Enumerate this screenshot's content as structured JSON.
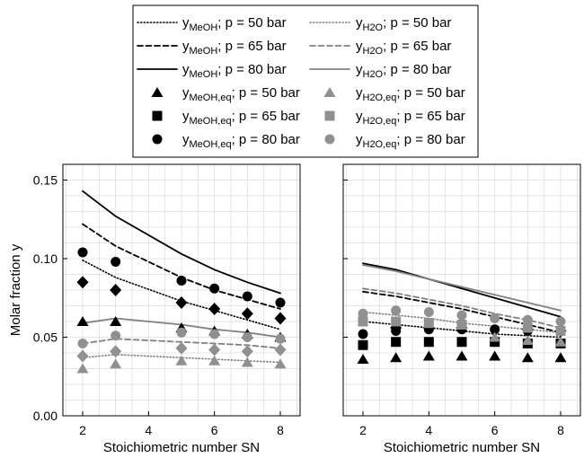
{
  "chart_data": [
    {
      "panel": "left",
      "type": "line",
      "xlabel": "Stoichiometric number SN",
      "ylabel": "Molar fraction y",
      "xlim": [
        1.4,
        8.6
      ],
      "ylim": [
        0.0,
        0.16
      ],
      "xticks": [
        2,
        4,
        6,
        8
      ],
      "yticks": [
        0.0,
        0.05,
        0.1,
        0.15
      ],
      "ytick_labels": [
        "0.00",
        "0.05",
        "0.10",
        "0.15"
      ],
      "grid": true,
      "series": [
        {
          "name": "y_MeOH; p = 50 bar",
          "kind": "line",
          "style": "dotted",
          "color": "#000000",
          "x": [
            2,
            3,
            5,
            6,
            7,
            8
          ],
          "y": [
            0.099,
            0.088,
            0.073,
            0.067,
            0.061,
            0.055
          ]
        },
        {
          "name": "y_MeOH; p = 65 bar",
          "kind": "line",
          "style": "dashed",
          "color": "#000000",
          "x": [
            2,
            3,
            5,
            6,
            7,
            8
          ],
          "y": [
            0.122,
            0.108,
            0.088,
            0.08,
            0.074,
            0.068
          ]
        },
        {
          "name": "y_MeOH; p = 80 bar",
          "kind": "line",
          "style": "solid",
          "color": "#000000",
          "x": [
            2,
            3,
            5,
            6,
            7,
            8
          ],
          "y": [
            0.143,
            0.127,
            0.103,
            0.093,
            0.085,
            0.078
          ]
        },
        {
          "name": "y_H2O; p = 50 bar",
          "kind": "line",
          "style": "dotted",
          "color": "#808080",
          "x": [
            2,
            3,
            5,
            6,
            7,
            8
          ],
          "y": [
            0.037,
            0.039,
            0.037,
            0.036,
            0.035,
            0.034
          ]
        },
        {
          "name": "y_H2O; p = 65 bar",
          "kind": "line",
          "style": "dashed",
          "color": "#808080",
          "x": [
            2,
            3,
            5,
            6,
            7,
            8
          ],
          "y": [
            0.046,
            0.049,
            0.047,
            0.046,
            0.045,
            0.043
          ]
        },
        {
          "name": "y_H2O; p = 80 bar",
          "kind": "line",
          "style": "solid",
          "color": "#808080",
          "x": [
            2,
            3,
            5,
            6,
            7,
            8
          ],
          "y": [
            0.059,
            0.062,
            0.058,
            0.055,
            0.053,
            0.05
          ]
        },
        {
          "name": "y_MeOH,eq; p = 50 bar",
          "kind": "marker",
          "marker": "triangle",
          "color": "#000000",
          "x": [
            2,
            3,
            5,
            6,
            7,
            8
          ],
          "y": [
            0.06,
            0.06,
            0.056,
            0.054,
            0.052,
            0.05
          ]
        },
        {
          "name": "y_MeOH,eq; p = 80 bar",
          "kind": "marker",
          "marker": "circle",
          "color": "#000000",
          "x": [
            2,
            3,
            5,
            6,
            7,
            8
          ],
          "y": [
            0.104,
            0.098,
            0.086,
            0.081,
            0.076,
            0.072
          ]
        },
        {
          "name": "y_MeOH,eq; p = 65 bar (diamond)",
          "kind": "marker",
          "marker": "diamond",
          "color": "#000000",
          "x": [
            2,
            3,
            5,
            6,
            7,
            8
          ],
          "y": [
            0.085,
            0.08,
            0.072,
            0.068,
            0.065,
            0.062
          ]
        },
        {
          "name": "y_H2O,eq; p = 50 bar",
          "kind": "marker",
          "marker": "triangle",
          "color": "#909090",
          "x": [
            2,
            3,
            5,
            6,
            7,
            8
          ],
          "y": [
            0.03,
            0.033,
            0.035,
            0.035,
            0.034,
            0.033
          ]
        },
        {
          "name": "y_H2O,eq; p = 65 bar",
          "kind": "marker",
          "marker": "diamond",
          "color": "#909090",
          "x": [
            2,
            3,
            5,
            6,
            7,
            8
          ],
          "y": [
            0.038,
            0.041,
            0.043,
            0.042,
            0.041,
            0.042
          ]
        },
        {
          "name": "y_H2O,eq; p = 80 bar",
          "kind": "marker",
          "marker": "circle",
          "color": "#909090",
          "x": [
            2,
            3,
            5,
            6,
            7,
            8
          ],
          "y": [
            0.046,
            0.051,
            0.053,
            0.052,
            0.05,
            0.049
          ]
        }
      ]
    },
    {
      "panel": "right",
      "type": "line",
      "xlabel": "Stoichiometric number SN",
      "ylabel": "",
      "xlim": [
        1.4,
        8.6
      ],
      "ylim": [
        0.0,
        0.16
      ],
      "xticks": [
        2,
        4,
        6,
        8
      ],
      "grid": true,
      "series": [
        {
          "name": "y_MeOH; p = 50 bar",
          "kind": "line",
          "style": "dotted",
          "color": "#000000",
          "x": [
            2,
            3,
            4,
            5,
            6,
            7,
            8
          ],
          "y": [
            0.06,
            0.058,
            0.056,
            0.054,
            0.052,
            0.051,
            0.05
          ]
        },
        {
          "name": "y_MeOH; p = 65 bar",
          "kind": "line",
          "style": "dashed",
          "color": "#000000",
          "x": [
            2,
            3,
            4,
            5,
            6,
            7,
            8
          ],
          "y": [
            0.079,
            0.076,
            0.072,
            0.068,
            0.063,
            0.058,
            0.053
          ]
        },
        {
          "name": "y_MeOH; p = 80 bar",
          "kind": "line",
          "style": "solid",
          "color": "#000000",
          "x": [
            2,
            3,
            4,
            5,
            6,
            7,
            8
          ],
          "y": [
            0.097,
            0.093,
            0.087,
            0.081,
            0.075,
            0.069,
            0.063
          ]
        },
        {
          "name": "y_H2O; p = 50 bar",
          "kind": "line",
          "style": "dotted",
          "color": "#808080",
          "x": [
            2,
            3,
            4,
            5,
            6,
            7,
            8
          ],
          "y": [
            0.066,
            0.064,
            0.062,
            0.059,
            0.057,
            0.055,
            0.053
          ]
        },
        {
          "name": "y_H2O; p = 65 bar",
          "kind": "line",
          "style": "dashed",
          "color": "#808080",
          "x": [
            2,
            3,
            4,
            5,
            6,
            7,
            8
          ],
          "y": [
            0.081,
            0.078,
            0.074,
            0.07,
            0.065,
            0.061,
            0.056
          ]
        },
        {
          "name": "y_H2O; p = 80 bar",
          "kind": "line",
          "style": "solid",
          "color": "#808080",
          "x": [
            2,
            3,
            4,
            5,
            6,
            7,
            8
          ],
          "y": [
            0.096,
            0.092,
            0.087,
            0.082,
            0.077,
            0.072,
            0.067
          ]
        },
        {
          "name": "y_MeOH,eq; p = 50 bar",
          "kind": "marker",
          "marker": "triangle",
          "color": "#000000",
          "x": [
            2,
            3,
            4,
            5,
            6,
            7,
            8
          ],
          "y": [
            0.036,
            0.037,
            0.038,
            0.038,
            0.038,
            0.037,
            0.037
          ]
        },
        {
          "name": "y_MeOH,eq; p = 65 bar",
          "kind": "marker",
          "marker": "square",
          "color": "#000000",
          "x": [
            2,
            3,
            4,
            5,
            6,
            7,
            8
          ],
          "y": [
            0.045,
            0.047,
            0.047,
            0.047,
            0.047,
            0.046,
            0.046
          ]
        },
        {
          "name": "y_MeOH,eq; p = 80 bar",
          "kind": "marker",
          "marker": "circle",
          "color": "#000000",
          "x": [
            2,
            3,
            4,
            5,
            6,
            7,
            8
          ],
          "y": [
            0.052,
            0.054,
            0.055,
            0.055,
            0.055,
            0.054,
            0.054
          ]
        },
        {
          "name": "y_MeOH,eq; p = 80 bar (diamond)",
          "kind": "marker",
          "marker": "diamond",
          "color": "#000000",
          "x": [
            3,
            4,
            5,
            7,
            8
          ],
          "y": [
            0.056,
            0.056,
            0.056,
            0.055,
            0.054
          ]
        },
        {
          "name": "y_H2O,eq; p = 50 bar",
          "kind": "marker",
          "marker": "triangle",
          "color": "#909090",
          "x": [
            6,
            7,
            8
          ],
          "y": [
            0.05,
            0.048,
            0.047
          ]
        },
        {
          "name": "y_H2O,eq; p = 65 bar",
          "kind": "marker",
          "marker": "square",
          "color": "#909090",
          "x": [
            2,
            3,
            4,
            5,
            7,
            8
          ],
          "y": [
            0.06,
            0.06,
            0.059,
            0.058,
            0.056,
            0.054
          ]
        },
        {
          "name": "y_H2O,eq; p = 80 bar",
          "kind": "marker",
          "marker": "circle",
          "color": "#909090",
          "x": [
            2,
            3,
            4,
            5,
            6,
            7,
            8
          ],
          "y": [
            0.065,
            0.067,
            0.066,
            0.064,
            0.062,
            0.061,
            0.06
          ]
        }
      ]
    }
  ],
  "legend": {
    "placement": "top-center",
    "rows": [
      {
        "left": {
          "sym": "line",
          "style": "dotted",
          "color": "#000000",
          "y": "y",
          "sub": "MeOH",
          "rest": "; p = 50 bar"
        },
        "right": {
          "sym": "line",
          "style": "dotted",
          "color": "#808080",
          "y": "y",
          "sub": "H2O",
          "rest": "; p = 50 bar"
        }
      },
      {
        "left": {
          "sym": "line",
          "style": "dashed",
          "color": "#000000",
          "y": "y",
          "sub": "MeOH",
          "rest": "; p = 65 bar"
        },
        "right": {
          "sym": "line",
          "style": "dashed",
          "color": "#808080",
          "y": "y",
          "sub": "H2O",
          "rest": "; p = 65 bar"
        }
      },
      {
        "left": {
          "sym": "line",
          "style": "solid",
          "color": "#000000",
          "y": "y",
          "sub": "MeOH",
          "rest": "; p = 80 bar"
        },
        "right": {
          "sym": "line",
          "style": "solid",
          "color": "#808080",
          "y": "y",
          "sub": "H2O",
          "rest": "; p = 80 bar"
        }
      },
      {
        "left": {
          "sym": "triangle",
          "color": "#000000",
          "y": "y",
          "sub": "MeOH,eq",
          "rest": "; p = 50 bar"
        },
        "right": {
          "sym": "triangle",
          "color": "#909090",
          "y": "y",
          "sub": "H2O,eq",
          "rest": "; p = 50 bar"
        }
      },
      {
        "left": {
          "sym": "square",
          "color": "#000000",
          "y": "y",
          "sub": "MeOH,eq",
          "rest": "; p = 65 bar"
        },
        "right": {
          "sym": "square",
          "color": "#909090",
          "y": "y",
          "sub": "H2O,eq",
          "rest": "; p = 65 bar"
        }
      },
      {
        "left": {
          "sym": "circle",
          "color": "#000000",
          "y": "y",
          "sub": "MeOH,eq",
          "rest": "; p = 80 bar"
        },
        "right": {
          "sym": "circle",
          "color": "#909090",
          "y": "y",
          "sub": "H2O,eq",
          "rest": "; p = 80 bar"
        }
      }
    ]
  }
}
